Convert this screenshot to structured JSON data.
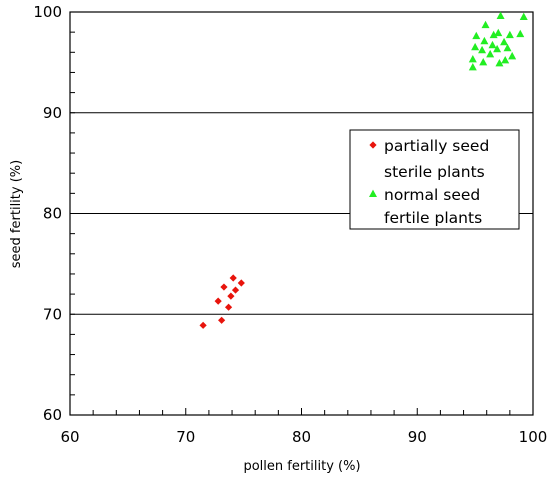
{
  "chart_data": {
    "type": "scatter",
    "title": "",
    "xlabel": "pollen fertility (%)",
    "ylabel": "seed fertility (%)",
    "xlim": [
      60,
      100
    ],
    "ylim": [
      60,
      100
    ],
    "x_ticks": [
      "60",
      "70",
      "80",
      "90",
      "100"
    ],
    "y_ticks": [
      "60",
      "70",
      "80",
      "90",
      "100"
    ],
    "grid": "horizontal major",
    "legend_position": "right",
    "series": [
      {
        "name": "partially seed sterile plants",
        "label_lines": [
          "partially seed",
          "sterile plants"
        ],
        "marker": "diamond",
        "color": "#e8140c",
        "points": [
          [
            71.5,
            68.9
          ],
          [
            73.1,
            69.4
          ],
          [
            73.3,
            72.7
          ],
          [
            72.8,
            71.3
          ],
          [
            73.7,
            70.7
          ],
          [
            73.9,
            71.8
          ],
          [
            74.1,
            73.6
          ],
          [
            74.3,
            72.4
          ],
          [
            74.8,
            73.1
          ]
        ]
      },
      {
        "name": "normal seed fertile plants",
        "label_lines": [
          "normal seed",
          "fertile plants"
        ],
        "marker": "triangle",
        "color": "#22ee22",
        "points": [
          [
            94.8,
            94.5
          ],
          [
            94.8,
            95.3
          ],
          [
            95.0,
            96.5
          ],
          [
            95.1,
            97.6
          ],
          [
            95.6,
            96.2
          ],
          [
            95.7,
            95.0
          ],
          [
            95.8,
            97.1
          ],
          [
            95.9,
            98.7
          ],
          [
            96.3,
            95.8
          ],
          [
            96.5,
            96.7
          ],
          [
            96.6,
            97.7
          ],
          [
            96.9,
            96.3
          ],
          [
            97.0,
            97.9
          ],
          [
            97.1,
            94.9
          ],
          [
            97.2,
            99.6
          ],
          [
            97.5,
            97.0
          ],
          [
            97.6,
            95.2
          ],
          [
            97.8,
            96.4
          ],
          [
            98.0,
            97.7
          ],
          [
            98.2,
            95.6
          ],
          [
            98.9,
            97.8
          ],
          [
            99.2,
            99.5
          ]
        ]
      }
    ]
  }
}
